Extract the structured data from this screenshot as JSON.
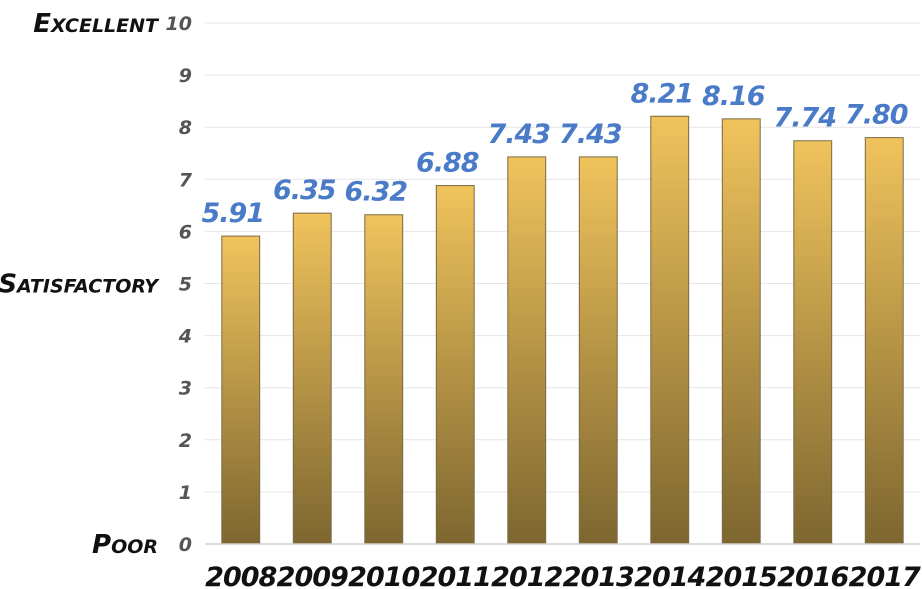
{
  "chart_data": {
    "type": "bar",
    "title": "",
    "xlabel": "",
    "ylabel": "",
    "categories": [
      "2008",
      "2009",
      "2010",
      "2011",
      "2012",
      "2013",
      "2014",
      "2015",
      "2016",
      "2017"
    ],
    "values": [
      5.91,
      6.35,
      6.32,
      6.88,
      7.43,
      7.43,
      8.21,
      8.16,
      7.74,
      7.8
    ],
    "value_labels": [
      "5.91",
      "6.35",
      "6.32",
      "6.88",
      "7.43",
      "7.43",
      "8.21",
      "8.16",
      "7.74",
      "7.80"
    ],
    "ylim": [
      0,
      10
    ],
    "yticks": [
      "0",
      "1",
      "2",
      "3",
      "4",
      "5",
      "6",
      "7",
      "8",
      "9",
      "10"
    ],
    "y_quality_labels": [
      {
        "text": "Poor",
        "at": 0
      },
      {
        "text": "Satisfactory",
        "at": 5
      },
      {
        "text": "Excellent",
        "at": 10
      }
    ],
    "grid": true,
    "legend": "none",
    "colors": {
      "bar_top": "#f0c35c",
      "bar_bottom": "#7d6630",
      "value_label": "#4a7bc8",
      "grid": "#e6e6e6"
    }
  }
}
